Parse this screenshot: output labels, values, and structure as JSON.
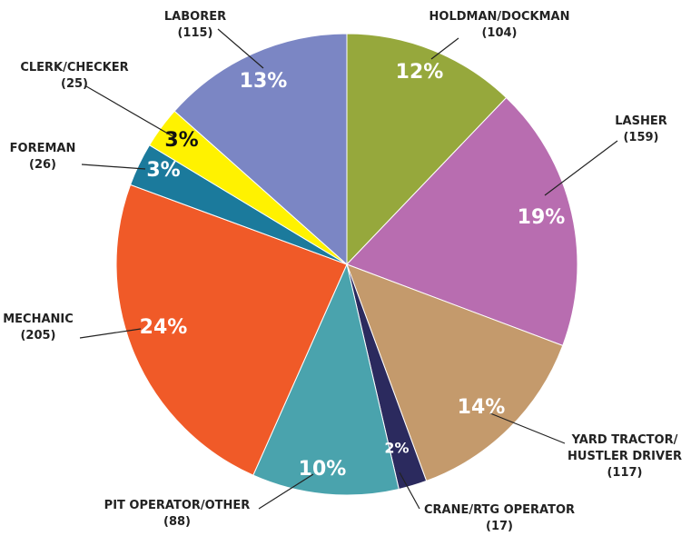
{
  "chart_data": {
    "type": "pie",
    "categories": [
      "HOLDMAN/DOCKMAN",
      "LASHER",
      "YARD TRACTOR/ HUSTLER DRIVER",
      "CRANE/RTG OPERATOR",
      "PIT OPERATOR/OTHER",
      "MECHANIC",
      "FOREMAN",
      "CLERK/CHECKER",
      "LABORER"
    ],
    "values": [
      104,
      159,
      117,
      17,
      88,
      205,
      26,
      25,
      115
    ],
    "value_labels": [
      "(104)",
      "(159)",
      "(117)",
      "(17)",
      "(88)",
      "(205)",
      "(26)",
      "(25)",
      "(115)"
    ],
    "percent_labels": [
      "12%",
      "19%",
      "14%",
      "2%",
      "10%",
      "24%",
      "3%",
      "3%",
      "13%"
    ],
    "colors": [
      "#96a83c",
      "#b86db0",
      "#c49a6c",
      "#2b2a5e",
      "#4aa3ad",
      "#f05a28",
      "#1b7a9c",
      "#fff200",
      "#7b86c4"
    ]
  }
}
